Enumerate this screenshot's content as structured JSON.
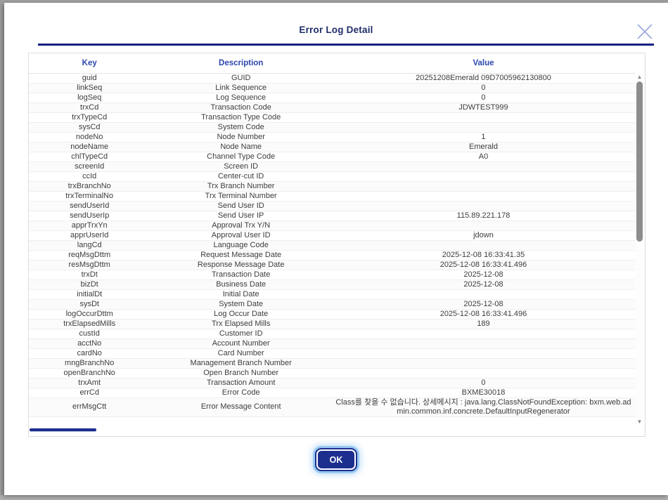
{
  "modal": {
    "title": "Error Log Detail",
    "ok_label": "OK"
  },
  "icons": {
    "scroll_up": "▲",
    "scroll_down": "▼"
  },
  "colors": {
    "navy": "#1c2f8f",
    "header-text": "#2b46ad",
    "title": "#1f2d69",
    "glow": "#8ec3f0"
  },
  "table": {
    "headers": [
      "Key",
      "Description",
      "Value"
    ],
    "rows": [
      {
        "key": "guid",
        "desc": "GUID",
        "value": "20251208Emerald 09D7005962130800"
      },
      {
        "key": "linkSeq",
        "desc": "Link Sequence",
        "value": "0"
      },
      {
        "key": "logSeq",
        "desc": "Log Sequence",
        "value": "0"
      },
      {
        "key": "trxCd",
        "desc": "Transaction Code",
        "value": "JDWTEST999"
      },
      {
        "key": "trxTypeCd",
        "desc": "Transaction Type Code",
        "value": ""
      },
      {
        "key": "sysCd",
        "desc": "System Code",
        "value": ""
      },
      {
        "key": "nodeNo",
        "desc": "Node Number",
        "value": "1"
      },
      {
        "key": "nodeName",
        "desc": "Node Name",
        "value": "Emerald"
      },
      {
        "key": "chlTypeCd",
        "desc": "Channel Type Code",
        "value": "A0"
      },
      {
        "key": "screenId",
        "desc": "Screen ID",
        "value": ""
      },
      {
        "key": "ccId",
        "desc": "Center-cut ID",
        "value": ""
      },
      {
        "key": "trxBranchNo",
        "desc": "Trx Branch Number",
        "value": ""
      },
      {
        "key": "trxTerminalNo",
        "desc": "Trx Terminal Number",
        "value": ""
      },
      {
        "key": "sendUserId",
        "desc": "Send User ID",
        "value": ""
      },
      {
        "key": "sendUserIp",
        "desc": "Send User IP",
        "value": "115.89.221.178"
      },
      {
        "key": "apprTrxYn",
        "desc": "Approval Trx Y/N",
        "value": ""
      },
      {
        "key": "apprUserId",
        "desc": "Approval User ID",
        "value": "jdown"
      },
      {
        "key": "langCd",
        "desc": "Language Code",
        "value": ""
      },
      {
        "key": "reqMsgDttm",
        "desc": "Request Message Date",
        "value": "2025-12-08 16:33:41.35"
      },
      {
        "key": "resMsgDttm",
        "desc": "Response Message Date",
        "value": "2025-12-08 16:33:41.496"
      },
      {
        "key": "trxDt",
        "desc": "Transaction Date",
        "value": "2025-12-08"
      },
      {
        "key": "bizDt",
        "desc": "Business Date",
        "value": "2025-12-08"
      },
      {
        "key": "initialDt",
        "desc": "Initial Date",
        "value": ""
      },
      {
        "key": "sysDt",
        "desc": "System Date",
        "value": "2025-12-08"
      },
      {
        "key": "logOccurDttm",
        "desc": "Log Occur Date",
        "value": "2025-12-08 16:33:41.496"
      },
      {
        "key": "trxElapsedMills",
        "desc": "Trx Elapsed Mills",
        "value": "189"
      },
      {
        "key": "custId",
        "desc": "Customer ID",
        "value": ""
      },
      {
        "key": "acctNo",
        "desc": "Account Number",
        "value": ""
      },
      {
        "key": "cardNo",
        "desc": "Card Number",
        "value": ""
      },
      {
        "key": "mngBranchNo",
        "desc": "Management Branch Number",
        "value": ""
      },
      {
        "key": "openBranchNo",
        "desc": "Open Branch Number",
        "value": ""
      },
      {
        "key": "trxAmt",
        "desc": "Transaction Amount",
        "value": "0"
      },
      {
        "key": "errCd",
        "desc": "Error Code",
        "value": "BXME30018"
      },
      {
        "key": "errMsgCtt",
        "desc": "Error Message Content",
        "value": "Class를 찾을 수 없습니다. 상세메시지 : java.lang.ClassNotFoundException: bxm.web.admin.common.inf.concrete.DefaultInputRegenerator"
      }
    ]
  }
}
